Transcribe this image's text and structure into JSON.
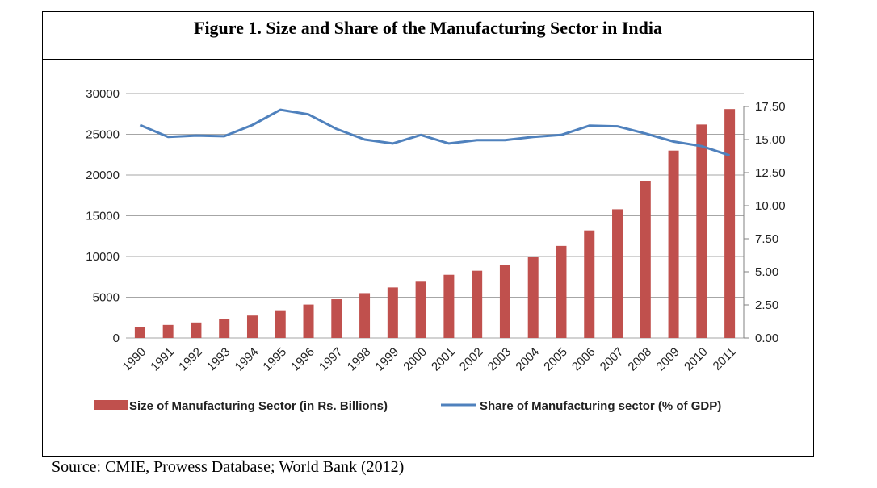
{
  "figure": {
    "title": "Figure 1. Size and Share of the Manufacturing Sector in India",
    "source": "Source: CMIE, Prowess Database; World Bank (2012)"
  },
  "chart_data": {
    "type": "bar",
    "title": "Figure 1. Size and Share of the Manufacturing Sector in India",
    "categories": [
      "1990",
      "1991",
      "1992",
      "1993",
      "1994",
      "1995",
      "1996",
      "1997",
      "1998",
      "1999",
      "2000",
      "2001",
      "2002",
      "2003",
      "2004",
      "2005",
      "2006",
      "2007",
      "2008",
      "2009",
      "2010",
      "2011"
    ],
    "series": [
      {
        "name": "Size of Manufacturing Sector (in Rs. Billions)",
        "type": "bar",
        "axis": "left",
        "color": "#c0504d",
        "values": [
          1300,
          1600,
          1900,
          2300,
          2750,
          3400,
          4100,
          4750,
          5500,
          6200,
          7000,
          7750,
          8250,
          9000,
          10000,
          11300,
          13200,
          15800,
          19300,
          23000,
          26200,
          28100
        ]
      },
      {
        "name": "Share of Manufacturing sector (% of GDP)",
        "type": "line",
        "axis": "right",
        "color": "#4f81bd",
        "values": [
          16.1,
          15.2,
          15.3,
          15.25,
          16.1,
          17.25,
          16.9,
          15.8,
          15.0,
          14.7,
          15.35,
          14.7,
          14.95,
          14.95,
          15.2,
          15.35,
          16.05,
          16.0,
          15.45,
          14.85,
          14.5,
          13.8
        ]
      }
    ],
    "y_left": {
      "min": 0,
      "max": 30000,
      "ticks": [
        0,
        5000,
        10000,
        15000,
        20000,
        25000,
        30000
      ]
    },
    "y_right": {
      "min": 0,
      "max": 17.5,
      "ticks": [
        "0.00",
        "2.50",
        "5.00",
        "7.50",
        "10.00",
        "12.50",
        "15.00",
        "17.50"
      ]
    },
    "grid": true,
    "legend_placement": "bottom"
  }
}
